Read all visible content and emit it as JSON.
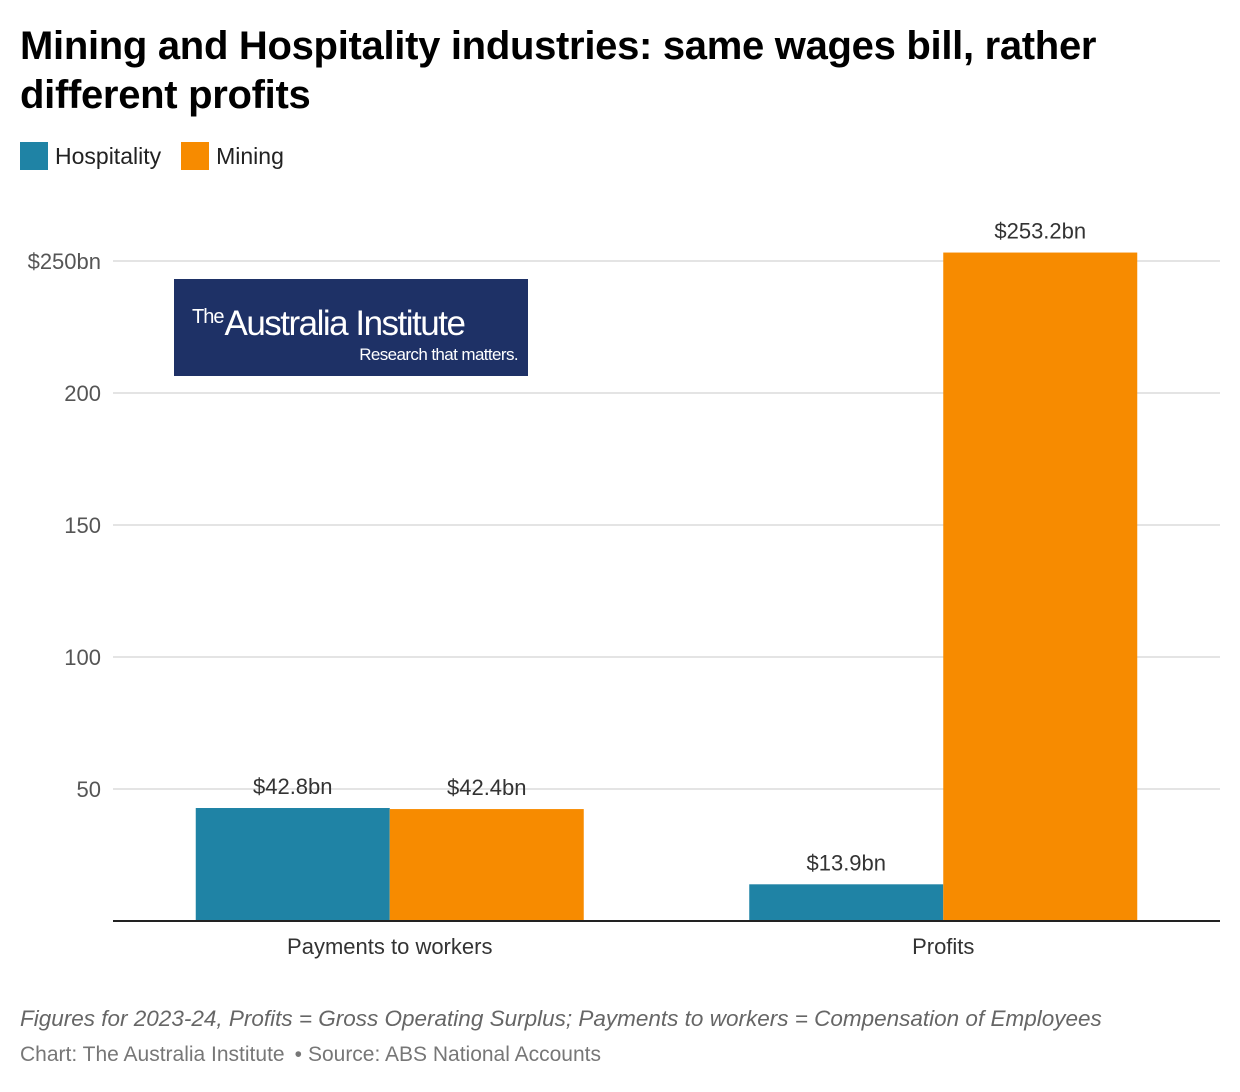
{
  "chart_data": {
    "type": "bar",
    "title": "Mining and Hospitality industries: same wages bill, rather different profits",
    "categories": [
      "Payments to workers",
      "Profits"
    ],
    "series": [
      {
        "name": "Hospitality",
        "color": "#1f83a5",
        "values": [
          42.8,
          13.9
        ],
        "labels": [
          "$42.8bn",
          "$13.9bn"
        ]
      },
      {
        "name": "Mining",
        "color": "#f78b00",
        "values": [
          42.4,
          253.2
        ],
        "labels": [
          "$42.4bn",
          "$253.2bn"
        ]
      }
    ],
    "ylim": [
      0,
      260
    ],
    "yticks": [
      50,
      100,
      150,
      200,
      250
    ],
    "ytick_labels": [
      "50",
      "100",
      "150",
      "200",
      "$250bn"
    ],
    "xlabel": "",
    "ylabel": "",
    "grid": true,
    "legend": "top-left"
  },
  "logo": {
    "the": "The",
    "name": "Australia Institute",
    "tagline": "Research that matters."
  },
  "footnote": "Figures for 2023-24, Profits = Gross Operating Surplus; Payments to workers = Compensation of Employees",
  "credits": {
    "chart": "Chart: The Australia Institute",
    "separator": "•",
    "source": "Source: ABS National Accounts"
  }
}
